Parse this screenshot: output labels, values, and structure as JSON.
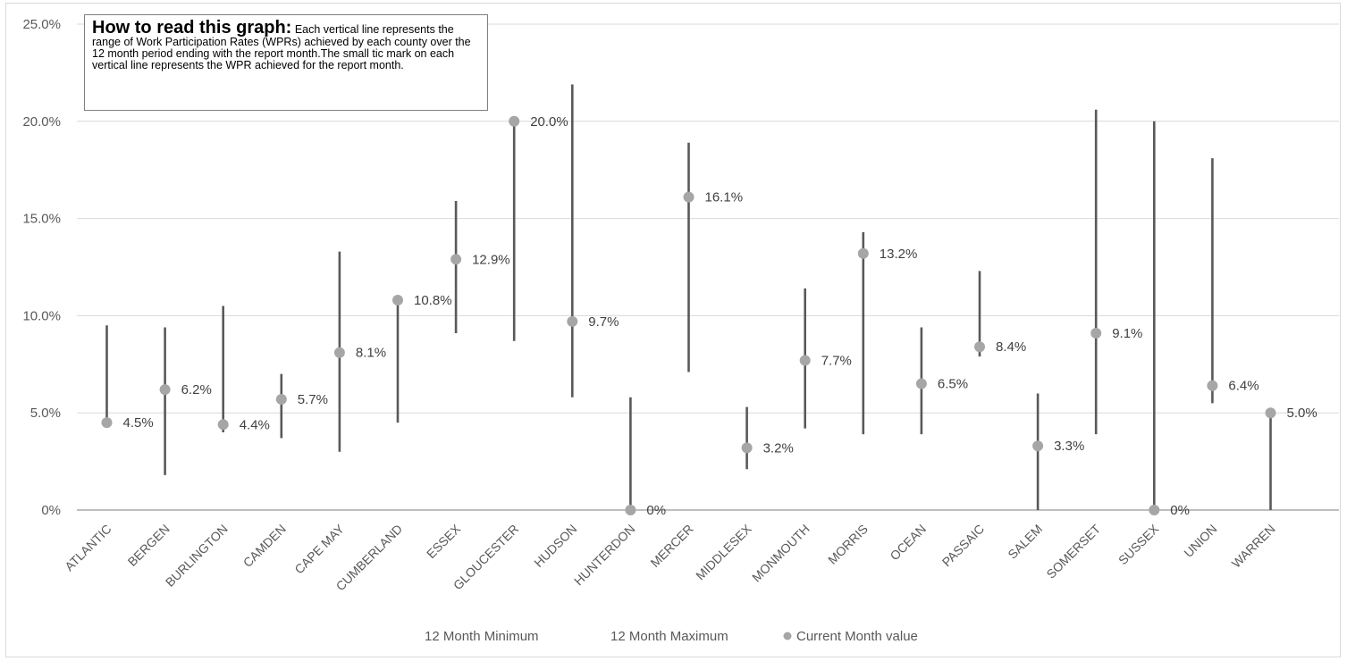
{
  "chart_data": {
    "type": "range-dot",
    "yaxis": {
      "min": 0,
      "max": 25,
      "step": 5,
      "tick_labels": [
        "0%",
        "5.0%",
        "10.0%",
        "15.0%",
        "20.0%",
        "25.0%"
      ]
    },
    "grid": true,
    "legend_position": "bottom",
    "categories": [
      "ATLANTIC",
      "BERGEN",
      "BURLINGTON",
      "CAMDEN",
      "CAPE MAY",
      "CUMBERLAND",
      "ESSEX",
      "GLOUCESTER",
      "HUDSON",
      "HUNTERDON",
      "MERCER",
      "MIDDLESEX",
      "MONMOUTH",
      "MORRIS",
      "OCEAN",
      "PASSAIC",
      "SALEM",
      "SOMERSET",
      "SUSSEX",
      "UNION",
      "WARREN"
    ],
    "series": [
      {
        "name": "12 Month Minimum",
        "values": [
          4.5,
          1.8,
          4.0,
          3.7,
          3.0,
          4.5,
          9.1,
          8.7,
          5.8,
          0,
          7.1,
          2.1,
          4.2,
          3.9,
          3.9,
          7.9,
          0,
          3.9,
          0,
          5.5,
          0
        ]
      },
      {
        "name": "12 Month Maximum",
        "values": [
          9.5,
          9.4,
          10.5,
          7.0,
          13.3,
          10.8,
          15.9,
          20.0,
          21.9,
          5.8,
          18.9,
          5.3,
          11.4,
          14.3,
          9.4,
          12.3,
          6.0,
          20.6,
          20.0,
          18.1,
          5.0
        ]
      },
      {
        "name": "Current Month value",
        "values": [
          4.5,
          6.2,
          4.4,
          5.7,
          8.1,
          10.8,
          12.9,
          20.0,
          9.7,
          0,
          16.1,
          3.2,
          7.7,
          13.2,
          6.5,
          8.4,
          3.3,
          9.1,
          0,
          6.4,
          5.0
        ]
      }
    ],
    "data_labels": [
      "4.5%",
      "6.2%",
      "4.4%",
      "5.7%",
      "8.1%",
      "10.8%",
      "12.9%",
      "20.0%",
      "9.7%",
      "0%",
      "16.1%",
      "3.2%",
      "7.7%",
      "13.2%",
      "6.5%",
      "8.4%",
      "3.3%",
      "9.1%",
      "0%",
      "6.4%",
      "5.0%"
    ],
    "legend": [
      "12 Month Minimum",
      "12 Month Maximum",
      "Current Month value"
    ]
  },
  "note": {
    "title": "How to read this graph:",
    "body": "Each vertical line represents the range of Work Participation Rates (WPRs) achieved by each county over the 12 month period ending with the report month.The small tic mark on each vertical line represents the WPR achieved for the report month."
  },
  "colors": {
    "range_line": "#595959",
    "marker": "#a6a6a6",
    "grid": "#d9d9d9",
    "axis": "#bfbfbf"
  }
}
